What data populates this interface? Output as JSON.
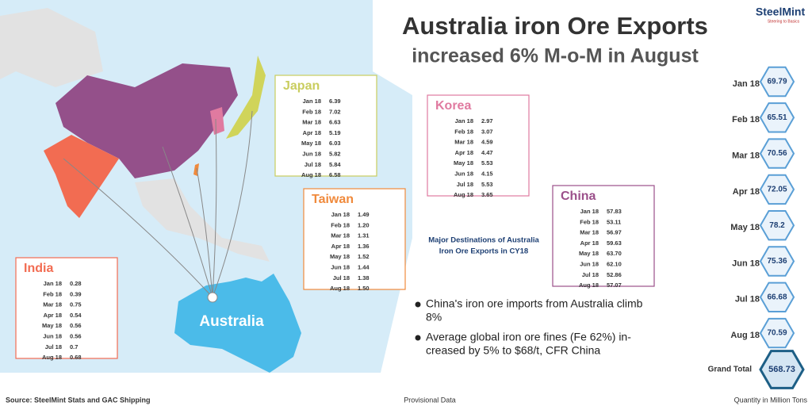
{
  "logo": {
    "name": "SteelMint",
    "tagline": "Steering to Basics"
  },
  "header": {
    "title": "Australia iron Ore Exports",
    "subtitle": "increased 6% M-o-M in August"
  },
  "map": {
    "label": "Australia",
    "caption": [
      "Major Destinations of Australia",
      "Iron Ore Exports in CY18"
    ]
  },
  "boxes": [
    {
      "name": "Japan",
      "rows": [
        [
          "Jan 18",
          "6.39"
        ],
        [
          "Feb 18",
          "7.02"
        ],
        [
          "Mar 18",
          "6.63"
        ],
        [
          "Apr 18",
          "5.19"
        ],
        [
          "May 18",
          "6.03"
        ],
        [
          "Jun 18",
          "5.82"
        ],
        [
          "Jul 18",
          "5.84"
        ],
        [
          "Aug 18",
          "6.58"
        ]
      ]
    },
    {
      "name": "Korea",
      "rows": [
        [
          "Jan 18",
          "2.97"
        ],
        [
          "Feb 18",
          "3.07"
        ],
        [
          "Mar 18",
          "4.59"
        ],
        [
          "Apr 18",
          "4.47"
        ],
        [
          "May 18",
          "5.53"
        ],
        [
          "Jun 18",
          "4.15"
        ],
        [
          "Jul 18",
          "5.53"
        ],
        [
          "Aug 18",
          "3.65"
        ]
      ]
    },
    {
      "name": "Taiwan",
      "rows": [
        [
          "Jan 18",
          "1.49"
        ],
        [
          "Feb 18",
          "1.20"
        ],
        [
          "Mar 18",
          "1.31"
        ],
        [
          "Apr 18",
          "1.36"
        ],
        [
          "May 18",
          "1.52"
        ],
        [
          "Jun 18",
          "1.44"
        ],
        [
          "Jul 18",
          "1.38"
        ],
        [
          "Aug 18",
          "1.50"
        ]
      ]
    },
    {
      "name": "China",
      "rows": [
        [
          "Jan 18",
          "57.83"
        ],
        [
          "Feb 18",
          "53.11"
        ],
        [
          "Mar 18",
          "56.97"
        ],
        [
          "Apr 18",
          "59.63"
        ],
        [
          "May 18",
          "63.70"
        ],
        [
          "Jun 18",
          "62.10"
        ],
        [
          "Jul 18",
          "52.86"
        ],
        [
          "Aug 18",
          "57.07"
        ]
      ]
    },
    {
      "name": "India",
      "rows": [
        [
          "Jan 18",
          "0.28"
        ],
        [
          "Feb 18",
          "0.39"
        ],
        [
          "Mar 18",
          "0.75"
        ],
        [
          "Apr 18",
          "0.54"
        ],
        [
          "May 18",
          "0.56"
        ],
        [
          "Jun 18",
          "0.56"
        ],
        [
          "Jul 18",
          "0.7"
        ],
        [
          "Aug 18",
          "0.68"
        ]
      ]
    }
  ],
  "totals": {
    "rows": [
      [
        "Jan 18",
        "69.79"
      ],
      [
        "Feb 18",
        "65.51"
      ],
      [
        "Mar 18",
        "70.56"
      ],
      [
        "Apr 18",
        "72.05"
      ],
      [
        "May 18",
        "78.2"
      ],
      [
        "Jun 18",
        "75.36"
      ],
      [
        "Jul 18",
        "66.68"
      ],
      [
        "Aug 18",
        "70.59"
      ]
    ],
    "grand_label": "Grand Total",
    "grand_value": "568.73"
  },
  "bullets": [
    [
      "China's iron ore imports from Australia climb",
      "8%"
    ],
    [
      "Average global iron ore fines (Fe 62%) in-",
      "creased by 5% to $68/t, CFR China"
    ]
  ],
  "footer": {
    "source": "Source: SteelMint Stats and GAC Shipping",
    "note": "Provisional Data",
    "unit": "Quantity in Million Tons"
  }
}
